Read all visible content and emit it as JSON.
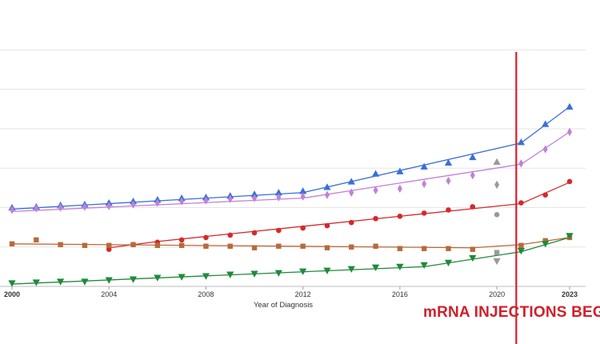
{
  "chart_data": {
    "type": "line",
    "title": "",
    "xlabel": "Year of Diagnosis",
    "ylabel": "",
    "xlim": [
      2000,
      2023.5
    ],
    "ylim": [
      0,
      340
    ],
    "grid": true,
    "x_ticks": [
      2000,
      2004,
      2008,
      2012,
      2016,
      2020,
      2023
    ],
    "x_tick_labels": [
      "2000",
      "2004",
      "2008",
      "2012",
      "2016",
      "2020",
      "2023"
    ],
    "bold_ticks": [
      2000,
      2023
    ],
    "y_gridlines": [
      0,
      50,
      100,
      150,
      200,
      250,
      300
    ],
    "series": [
      {
        "name": "blue-triangle",
        "color": "#3a6fd8",
        "marker": "triangle-up",
        "x": [
          2000,
          2001,
          2002,
          2003,
          2004,
          2005,
          2006,
          2007,
          2008,
          2009,
          2010,
          2011,
          2012,
          2013,
          2014,
          2015,
          2016,
          2017,
          2018,
          2019,
          2021,
          2022,
          2023
        ],
        "y": [
          100,
          101,
          103,
          104,
          106,
          108,
          110,
          112,
          113,
          115,
          117,
          119,
          121,
          126,
          133,
          143,
          146,
          152,
          157,
          164,
          183,
          206,
          228
        ],
        "fit": [
          [
            2000,
            98
          ],
          [
            2012,
            119
          ],
          [
            2021,
            182
          ],
          [
            2023,
            228
          ]
        ]
      },
      {
        "name": "violet-diamond",
        "color": "#c080d8",
        "marker": "diamond",
        "x": [
          2000,
          2001,
          2002,
          2003,
          2004,
          2005,
          2006,
          2007,
          2008,
          2009,
          2010,
          2011,
          2012,
          2013,
          2014,
          2015,
          2016,
          2017,
          2018,
          2019,
          2021,
          2022,
          2023
        ],
        "y": [
          97,
          99,
          100,
          101,
          102,
          104,
          106,
          108,
          109,
          111,
          112,
          113,
          114,
          116,
          119,
          122,
          124,
          130,
          134,
          141,
          156,
          174,
          196
        ],
        "fit": [
          [
            2000,
            95
          ],
          [
            2012,
            112
          ],
          [
            2021,
            155
          ],
          [
            2023,
            196
          ]
        ]
      },
      {
        "name": "red-circle",
        "color": "#d42a2a",
        "marker": "circle",
        "x": [
          2004,
          2005,
          2006,
          2007,
          2008,
          2009,
          2010,
          2011,
          2012,
          2013,
          2014,
          2015,
          2016,
          2017,
          2018,
          2019,
          2021,
          2022,
          2023
        ],
        "y": [
          47,
          53,
          56,
          59,
          62,
          65,
          68,
          71,
          74,
          77,
          81,
          86,
          89,
          93,
          97,
          101,
          106,
          116,
          133
        ],
        "fit": [
          [
            2004,
            49
          ],
          [
            2006,
            57
          ],
          [
            2021,
            105
          ],
          [
            2023,
            132
          ]
        ]
      },
      {
        "name": "orange-square",
        "color": "#b86a3a",
        "marker": "square",
        "x": [
          2000,
          2001,
          2002,
          2003,
          2004,
          2005,
          2006,
          2007,
          2008,
          2009,
          2010,
          2011,
          2012,
          2013,
          2014,
          2015,
          2016,
          2017,
          2018,
          2019,
          2021,
          2022,
          2023
        ],
        "y": [
          54,
          59,
          53,
          52,
          52,
          53,
          52,
          52,
          51,
          51,
          49,
          51,
          51,
          49,
          50,
          51,
          48,
          48,
          48,
          47,
          52,
          58,
          62
        ],
        "fit": [
          [
            2000,
            54
          ],
          [
            2019,
            49
          ],
          [
            2021,
            53
          ],
          [
            2023,
            62
          ]
        ]
      },
      {
        "name": "green-triangle-down",
        "color": "#1f8a3a",
        "marker": "triangle-down",
        "x": [
          2000,
          2001,
          2002,
          2003,
          2004,
          2005,
          2006,
          2007,
          2008,
          2009,
          2010,
          2011,
          2012,
          2013,
          2014,
          2015,
          2016,
          2017,
          2018,
          2019,
          2021,
          2022,
          2023
        ],
        "y": [
          4,
          5,
          6,
          6,
          8,
          9,
          11,
          12,
          13,
          15,
          16,
          17,
          19,
          20,
          22,
          24,
          25,
          27,
          30,
          36,
          45,
          54,
          64
        ],
        "fit": [
          [
            2000,
            3
          ],
          [
            2017,
            25
          ],
          [
            2021,
            44
          ],
          [
            2023,
            62
          ]
        ]
      }
    ],
    "outliers_2020": [
      {
        "series": "blue-triangle",
        "color": "#9a9a9a",
        "marker": "triangle-up",
        "x": 2020,
        "y": 158
      },
      {
        "series": "violet-diamond",
        "color": "#9a9a9a",
        "marker": "diamond",
        "x": 2020,
        "y": 129
      },
      {
        "series": "red-circle",
        "color": "#9a9a9a",
        "marker": "circle",
        "x": 2020,
        "y": 91
      },
      {
        "series": "orange-square",
        "color": "#9a9a9a",
        "marker": "square",
        "x": 2020,
        "y": 43
      },
      {
        "series": "green-triangle-down",
        "color": "#9a9a9a",
        "marker": "triangle-down",
        "x": 2020,
        "y": 32
      }
    ],
    "vline": {
      "x": 2020.8,
      "color": "#d0202a"
    },
    "annotation": "mRNA INJECTIONS BEGIN"
  }
}
